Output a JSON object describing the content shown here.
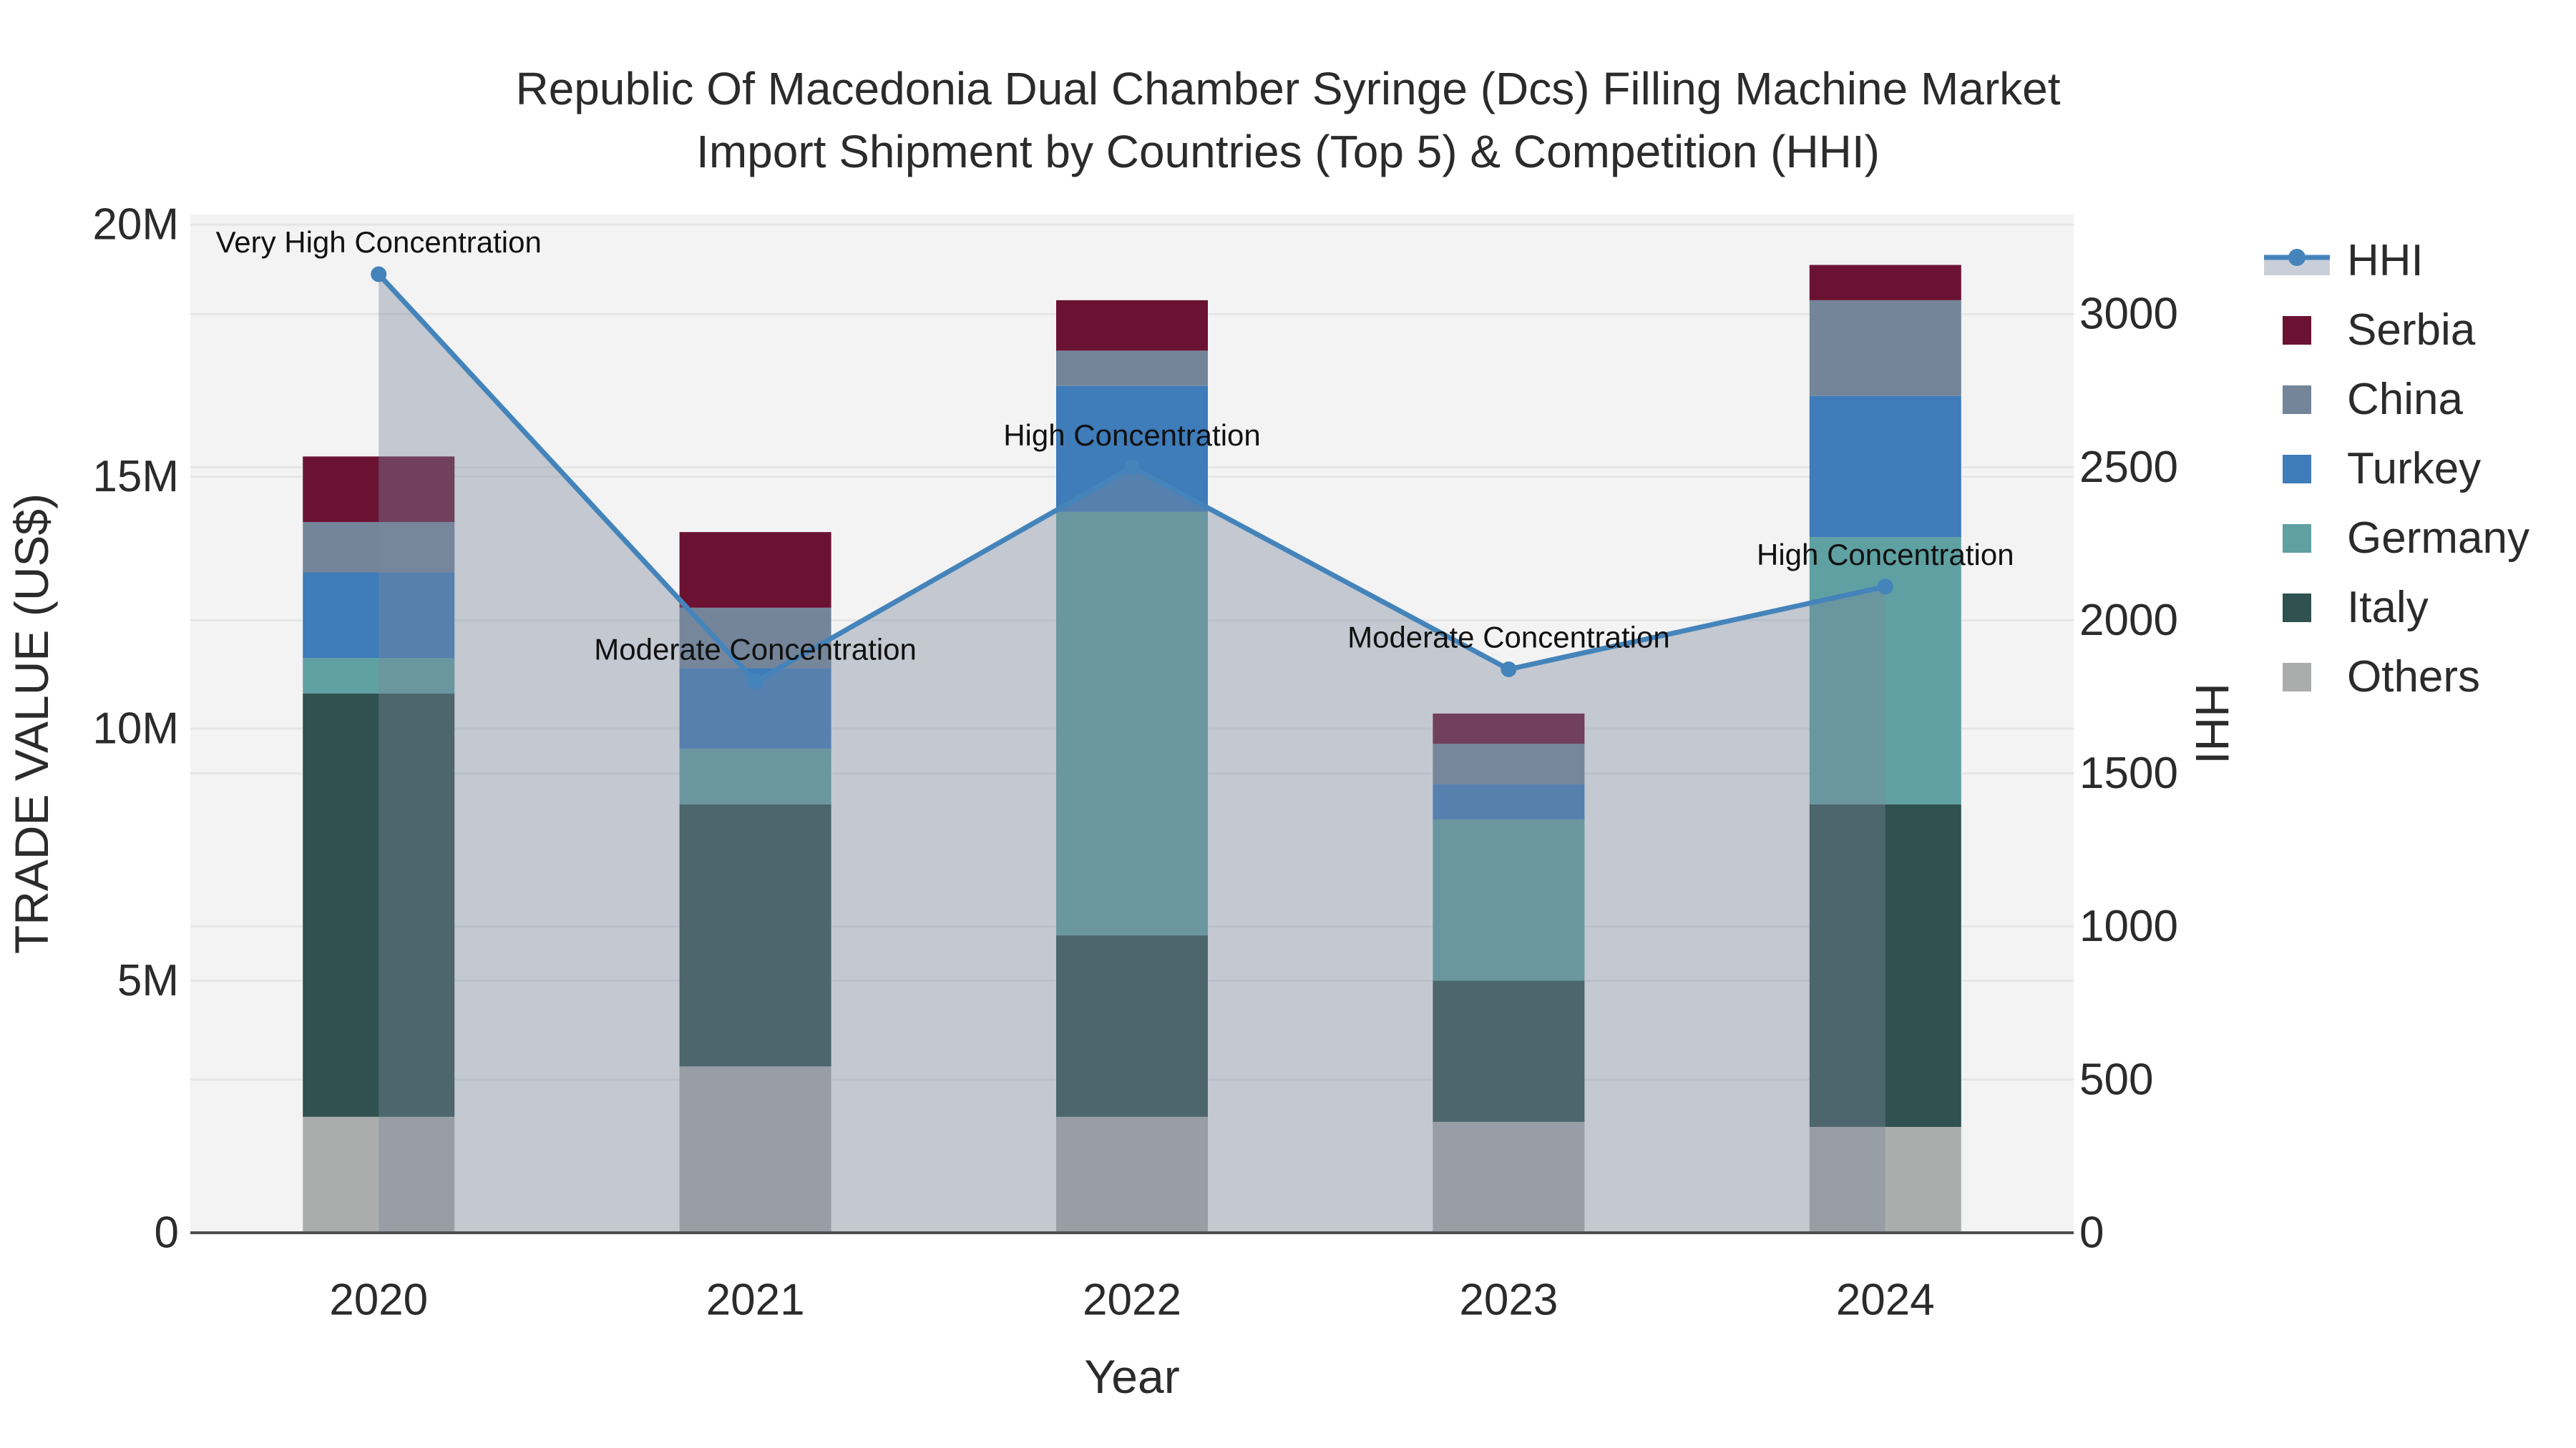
{
  "page": {
    "background": "#ffffff"
  },
  "title": {
    "line1": "Republic Of Macedonia Dual Chamber Syringe (Dcs) Filling Machine Market",
    "line2": "Import Shipment by Countries (Top 5) & Competition (HHI)"
  },
  "chart_data": {
    "type": "bar",
    "subtype": "stacked-bars-with-line",
    "categories": [
      "2020",
      "2021",
      "2022",
      "2023",
      "2024"
    ],
    "series": [
      {
        "name": "Others",
        "color": "#ABADAC",
        "values_musd": [
          2.3,
          3.3,
          2.3,
          2.2,
          2.1
        ]
      },
      {
        "name": "Italy",
        "color": "#2F514F",
        "values_musd": [
          8.4,
          5.2,
          3.6,
          2.8,
          6.4
        ]
      },
      {
        "name": "Germany",
        "color": "#5FA0A2",
        "values_musd": [
          0.7,
          1.1,
          8.4,
          3.2,
          5.3
        ]
      },
      {
        "name": "Turkey",
        "color": "#3E7CBA",
        "values_musd": [
          1.7,
          1.6,
          2.5,
          0.7,
          2.8
        ]
      },
      {
        "name": "China",
        "color": "#74859A",
        "values_musd": [
          1.0,
          1.2,
          0.7,
          0.8,
          1.9
        ]
      },
      {
        "name": "Serbia",
        "color": "#6B1232",
        "values_musd": [
          1.3,
          1.5,
          1.0,
          0.6,
          0.7
        ]
      }
    ],
    "line_series": {
      "name": "HHI",
      "color": "#4484BA",
      "area_fill": "rgba(122,136,158,0.4)",
      "values": [
        3130,
        1800,
        2500,
        1840,
        2110
      ]
    },
    "annotations": [
      "Very High Concentration",
      "Moderate Concentration",
      "High Concentration",
      "Moderate Concentration",
      "High Concentration"
    ],
    "axes": {
      "left": {
        "title": "TRADE VALUE (US$)",
        "tick_values_m": [
          0,
          5,
          10,
          15,
          20
        ],
        "tick_labels": [
          "0",
          "5M",
          "10M",
          "15M",
          "20M"
        ],
        "max_m": 20.2
      },
      "right": {
        "title": "HHI",
        "tick_values": [
          0,
          500,
          1000,
          1500,
          2000,
          2500,
          3000
        ],
        "tick_labels": [
          "0",
          "500",
          "1000",
          "1500",
          "2000",
          "2500",
          "3000"
        ],
        "max": 3325
      },
      "x": {
        "title": "Year"
      }
    },
    "legend_order": [
      "HHI",
      "Serbia",
      "China",
      "Turkey",
      "Germany",
      "Italy",
      "Others"
    ],
    "grid": true,
    "legend_position": "right",
    "plot_background": "#F3F3F3",
    "gridline_color": "#E5E6E6",
    "axisline_color": "#4D4F50",
    "text_color": "#2b2b2b",
    "annotation_color": "#111111"
  }
}
